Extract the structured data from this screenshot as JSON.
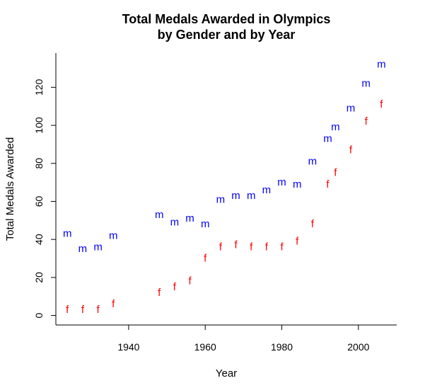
{
  "chart_data": {
    "type": "scatter",
    "title": "Total Medals Awarded in Olympics",
    "subtitle": "by Gender and by Year",
    "xlabel": "Year",
    "ylabel": "Total Medals Awarded",
    "xlim": [
      1921,
      2010
    ],
    "ylim": [
      -5,
      138
    ],
    "xticks": [
      1940,
      1960,
      1980,
      2000
    ],
    "yticks": [
      0,
      20,
      40,
      60,
      80,
      100,
      120
    ],
    "grid": false,
    "series": [
      {
        "name": "m",
        "color": "#0000ff",
        "x": [
          1924,
          1928,
          1932,
          1936,
          1948,
          1952,
          1956,
          1960,
          1964,
          1968,
          1972,
          1976,
          1980,
          1984,
          1988,
          1992,
          1994,
          1998,
          2002,
          2006
        ],
        "y": [
          43,
          35,
          36,
          42,
          53,
          49,
          51,
          48,
          61,
          63,
          63,
          66,
          70,
          69,
          81,
          93,
          99,
          109,
          122,
          132
        ]
      },
      {
        "name": "f",
        "color": "#ff0000",
        "x": [
          1924,
          1928,
          1932,
          1936,
          1948,
          1952,
          1956,
          1960,
          1964,
          1968,
          1972,
          1976,
          1980,
          1984,
          1988,
          1992,
          1994,
          1998,
          2002,
          2006
        ],
        "y": [
          3,
          3,
          3,
          6,
          12,
          15,
          18,
          30,
          36,
          37,
          36,
          36,
          36,
          39,
          48,
          69,
          75,
          87,
          102,
          111
        ]
      }
    ]
  }
}
